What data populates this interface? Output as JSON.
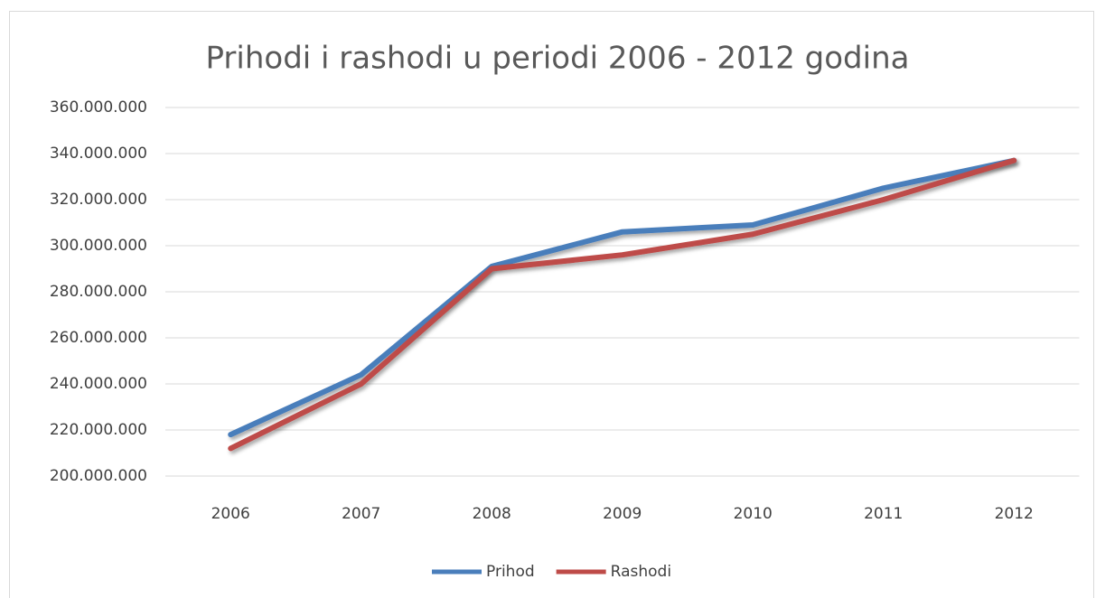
{
  "chart_data": {
    "type": "line",
    "title": "Prihodi i rashodi u periodi 2006 - 2012 godina",
    "categories": [
      "2006",
      "2007",
      "2008",
      "2009",
      "2010",
      "2011",
      "2012"
    ],
    "series": [
      {
        "name": "Prihod",
        "color": "#4a7ebb",
        "values": [
          218000000,
          244000000,
          291000000,
          306000000,
          309000000,
          325000000,
          337000000
        ]
      },
      {
        "name": "Rashodi",
        "color": "#be4b48",
        "values": [
          212000000,
          240000000,
          290000000,
          296000000,
          305000000,
          320000000,
          337000000
        ]
      }
    ],
    "ylim": [
      200000000,
      360000000
    ],
    "yticks": [
      {
        "value": 200000000,
        "label": "200.000.000"
      },
      {
        "value": 220000000,
        "label": "220.000.000"
      },
      {
        "value": 240000000,
        "label": "240.000.000"
      },
      {
        "value": 260000000,
        "label": "260.000.000"
      },
      {
        "value": 280000000,
        "label": "280.000.000"
      },
      {
        "value": 300000000,
        "label": "300.000.000"
      },
      {
        "value": 320000000,
        "label": "320.000.000"
      },
      {
        "value": 340000000,
        "label": "340.000.000"
      },
      {
        "value": 360000000,
        "label": "360.000.000"
      }
    ],
    "grid": true,
    "legend": "bottom"
  }
}
